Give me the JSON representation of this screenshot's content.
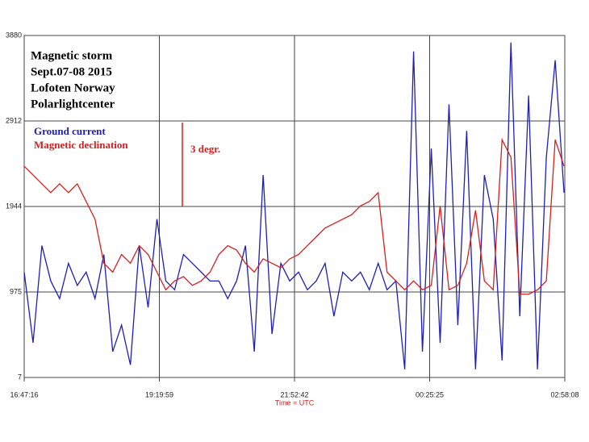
{
  "chart_data": {
    "type": "line",
    "title_lines": [
      "Magnetic storm",
      "Sept.07-08 2015",
      "Lofoten Norway",
      "Polarlightcenter"
    ],
    "annotation": "3 degr.",
    "xlabel": "Time = UTC",
    "x": [
      0,
      10,
      20,
      30,
      40,
      50,
      60,
      70,
      80,
      90,
      100,
      110,
      120,
      130,
      140,
      150,
      160,
      170,
      180,
      190,
      200,
      210,
      220,
      230,
      240,
      250,
      260,
      270,
      280,
      290,
      300,
      310,
      320,
      330,
      340,
      350,
      360,
      370,
      380,
      390,
      400,
      410,
      420,
      430,
      440,
      450,
      460,
      470,
      480,
      490,
      500,
      510,
      520,
      530,
      540,
      550,
      560,
      570,
      580,
      590,
      600,
      610
    ],
    "series": [
      {
        "name": "Ground current",
        "color": "#1f1fb4",
        "values": [
          1200,
          400,
          1500,
          1100,
          900,
          1300,
          1050,
          1200,
          900,
          1400,
          300,
          600,
          150,
          1500,
          800,
          1800,
          1100,
          1000,
          1400,
          1300,
          1200,
          1100,
          1100,
          900,
          1100,
          1500,
          300,
          2300,
          500,
          1300,
          1100,
          1200,
          1000,
          1100,
          1300,
          700,
          1200,
          1100,
          1200,
          1000,
          1300,
          1000,
          1100,
          100,
          3700,
          300,
          2600,
          400,
          3100,
          600,
          2800,
          100,
          2300,
          1800,
          200,
          3800,
          700,
          3200,
          100,
          2500,
          3600,
          2100
        ]
      },
      {
        "name": "Magnetic declination",
        "color": "#d42020",
        "values": [
          2400,
          2300,
          2200,
          2100,
          2200,
          2100,
          2200,
          2000,
          1800,
          1300,
          1200,
          1400,
          1300,
          1500,
          1400,
          1200,
          1000,
          1100,
          1150,
          1050,
          1100,
          1200,
          1400,
          1500,
          1450,
          1300,
          1200,
          1350,
          1300,
          1250,
          1350,
          1400,
          1500,
          1600,
          1700,
          1750,
          1800,
          1850,
          1950,
          2000,
          2100,
          1200,
          1100,
          1000,
          1100,
          1000,
          1050,
          1950,
          1000,
          1050,
          1300,
          1900,
          1100,
          1000,
          2700,
          2500,
          950,
          950,
          1000,
          1100,
          2700,
          2400
        ]
      }
    ],
    "xlim": [
      0,
      610.87
    ],
    "xticks": [
      {
        "value": 0,
        "label": "16:47:16"
      },
      {
        "value": 152.72,
        "label": "19:19:59"
      },
      {
        "value": 305.43,
        "label": "21:52:42"
      },
      {
        "value": 458.15,
        "label": "00:25:25"
      },
      {
        "value": 610.87,
        "label": "02:58:08"
      }
    ],
    "ylim": [
      7,
      3880
    ],
    "yticks": [
      7,
      975,
      1944,
      2912,
      3880
    ],
    "grid": true
  }
}
